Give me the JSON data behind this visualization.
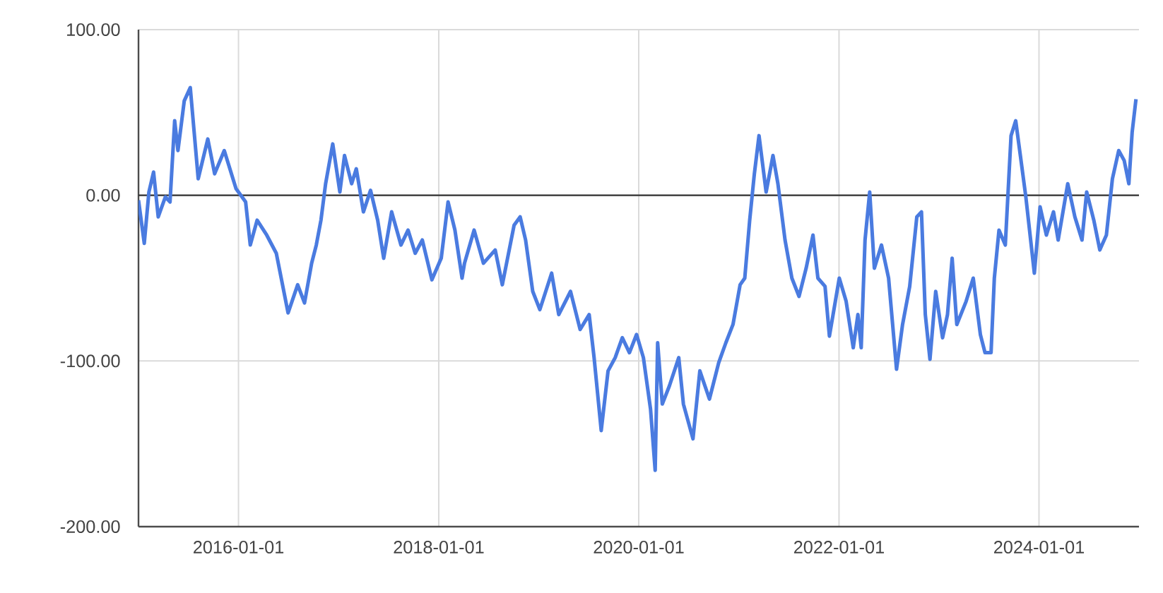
{
  "chart_data": {
    "type": "line",
    "x": [
      "2015-01-01",
      "2015-01-22",
      "2015-02-08",
      "2015-02-25",
      "2015-03-14",
      "2015-04-09",
      "2015-04-26",
      "2015-05-13",
      "2015-05-25",
      "2015-06-17",
      "2015-07-09",
      "2015-08-07",
      "2015-09-11",
      "2015-10-06",
      "2015-11-10",
      "2015-12-23",
      "2016-01-27",
      "2016-02-13",
      "2016-03-09",
      "2016-04-13",
      "2016-05-18",
      "2016-06-30",
      "2016-08-04",
      "2016-08-29",
      "2016-09-24",
      "2016-10-11",
      "2016-10-28",
      "2016-11-14",
      "2016-12-10",
      "2017-01-05",
      "2017-01-22",
      "2017-02-17",
      "2017-03-06",
      "2017-04-01",
      "2017-04-27",
      "2017-05-23",
      "2017-06-14",
      "2017-07-13",
      "2017-08-16",
      "2017-09-11",
      "2017-10-07",
      "2017-11-02",
      "2017-12-07",
      "2018-01-10",
      "2018-02-04",
      "2018-03-01",
      "2018-03-27",
      "2018-04-05",
      "2018-05-10",
      "2018-06-13",
      "2018-07-26",
      "2018-08-21",
      "2018-10-03",
      "2018-10-25",
      "2018-11-14",
      "2018-12-10",
      "2019-01-05",
      "2019-02-17",
      "2019-03-15",
      "2019-04-27",
      "2019-06-01",
      "2019-07-04",
      "2019-07-22",
      "2019-08-17",
      "2019-09-11",
      "2019-10-07",
      "2019-11-02",
      "2019-11-28",
      "2019-12-24",
      "2020-01-18",
      "2020-02-13",
      "2020-03-01",
      "2020-03-10",
      "2020-03-27",
      "2020-04-22",
      "2020-05-26",
      "2020-06-12",
      "2020-07-17",
      "2020-08-11",
      "2020-09-15",
      "2020-10-19",
      "2020-11-14",
      "2020-12-10",
      "2021-01-05",
      "2021-01-22",
      "2021-02-09",
      "2021-02-26",
      "2021-03-15",
      "2021-04-10",
      "2021-05-05",
      "2021-05-23",
      "2021-06-18",
      "2021-07-13",
      "2021-08-08",
      "2021-09-03",
      "2021-09-28",
      "2021-10-16",
      "2021-11-11",
      "2021-11-27",
      "2022-01-02",
      "2022-01-27",
      "2022-02-22",
      "2022-03-11",
      "2022-03-23",
      "2022-04-06",
      "2022-04-23",
      "2022-05-10",
      "2022-06-05",
      "2022-07-01",
      "2022-07-30",
      "2022-08-21",
      "2022-09-16",
      "2022-10-12",
      "2022-10-29",
      "2022-11-12",
      "2022-11-29",
      "2022-12-20",
      "2023-01-14",
      "2023-02-01",
      "2023-02-18",
      "2023-03-07",
      "2023-04-10",
      "2023-05-06",
      "2023-06-01",
      "2023-06-18",
      "2023-07-10",
      "2023-07-22",
      "2023-08-08",
      "2023-08-31",
      "2023-09-21",
      "2023-10-08",
      "2023-10-25",
      "2023-11-14",
      "2023-12-15",
      "2024-01-05",
      "2024-01-28",
      "2024-02-23",
      "2024-03-11",
      "2024-04-15",
      "2024-05-11",
      "2024-06-06",
      "2024-06-23",
      "2024-07-19",
      "2024-08-10",
      "2024-09-03",
      "2024-09-25",
      "2024-10-18",
      "2024-11-07",
      "2024-11-24",
      "2024-12-06",
      "2024-12-20"
    ],
    "series": [
      {
        "color": "#4a7be0",
        "values": [
          -3,
          -29,
          2,
          14,
          -13,
          -1,
          -4,
          45,
          27,
          57,
          65,
          10,
          34,
          13,
          27,
          4,
          -4,
          -30,
          -15,
          -24,
          -35,
          -71,
          -54,
          -65,
          -41,
          -30,
          -15,
          7,
          31,
          2,
          24,
          7,
          16,
          -10,
          3,
          -15,
          -38,
          -10,
          -30,
          -21,
          -35,
          -27,
          -51,
          -38,
          -4,
          -21,
          -50,
          -41,
          -21,
          -41,
          -33,
          -54,
          -18,
          -13,
          -27,
          -58,
          -69,
          -47,
          -72,
          -58,
          -81,
          -72,
          -98,
          -142,
          -106,
          -98,
          -86,
          -95,
          -84,
          -98,
          -129,
          -166,
          -89,
          -126,
          -115,
          -98,
          -126,
          -147,
          -106,
          -123,
          -101,
          -89,
          -78,
          -54,
          -50,
          -15,
          13,
          36,
          2,
          24,
          7,
          -27,
          -50,
          -61,
          -44,
          -24,
          -50,
          -55,
          -85,
          -50,
          -64,
          -92,
          -72,
          -92,
          -27,
          2,
          -44,
          -30,
          -50,
          -105,
          -78,
          -55,
          -13,
          -10,
          -72,
          -99,
          -58,
          -86,
          -72,
          -38,
          -78,
          -64,
          -50,
          -84,
          -95,
          -95,
          -50,
          -21,
          -30,
          36,
          45,
          24,
          -1,
          -47,
          -7,
          -24,
          -10,
          -27,
          7,
          -13,
          -27,
          2,
          -15,
          -33,
          -24,
          10,
          27,
          21,
          7,
          38,
          58
        ]
      }
    ],
    "xlim": [
      "2015-01-01",
      "2024-12-31"
    ],
    "xticks": [
      "2016-01-01",
      "2018-01-01",
      "2020-01-01",
      "2022-01-01",
      "2024-01-01"
    ],
    "ylim": [
      -200,
      100
    ],
    "yticks": [
      {
        "value": -200,
        "label": "-200.00"
      },
      {
        "value": -100,
        "label": "-100.00"
      },
      {
        "value": 0,
        "label": "0.00"
      },
      {
        "value": 100,
        "label": "100.00"
      }
    ],
    "grid": true,
    "ref_lines": [
      {
        "axis": "y",
        "value": 0,
        "color": "#333333"
      }
    ]
  }
}
